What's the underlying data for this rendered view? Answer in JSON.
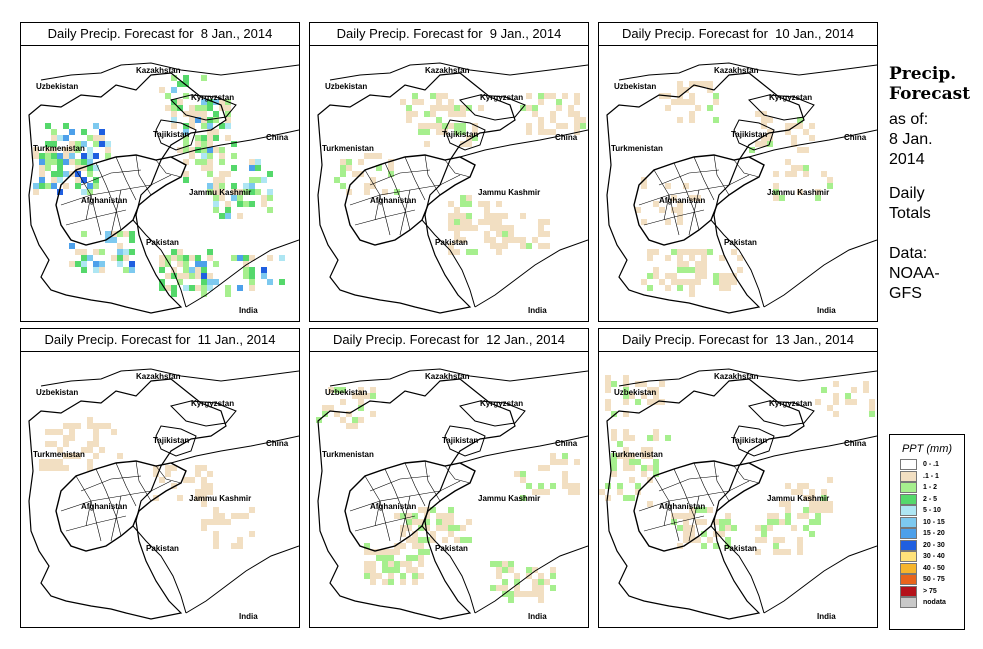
{
  "panels": [
    {
      "title": "Daily Precip. Forecast for  8 Jan., 2014",
      "intensity": 1.0
    },
    {
      "title": "Daily Precip. Forecast for  9 Jan., 2014",
      "intensity": 0.45
    },
    {
      "title": "Daily Precip. Forecast for  10 Jan., 2014",
      "intensity": 0.4
    },
    {
      "title": "Daily Precip. Forecast for  11 Jan., 2014",
      "intensity": 0.12
    },
    {
      "title": "Daily Precip. Forecast for  12 Jan., 2014",
      "intensity": 0.55
    },
    {
      "title": "Daily Precip. Forecast for  13 Jan., 2014",
      "intensity": 0.5
    }
  ],
  "map_labels": {
    "kazakhstan": "Kazakhstan",
    "uzbekistan": "Uzbekistan",
    "kyrgyzstan": "Kyrgyzstan",
    "tajikistan": "Tajikistan",
    "turkmenistan": "Turkmenistan",
    "china": "China",
    "afghanistan": "Afghanistan",
    "jammu_kashmir": "Jammu Kashmir",
    "pakistan": "Pakistan",
    "india": "India"
  },
  "side_text": {
    "heading_1": "Precip.",
    "heading_2": "Forecast",
    "as_of": "as of:",
    "date_1": "8 Jan.",
    "date_2": "2014",
    "daily_1": "Daily",
    "daily_2": "Totals",
    "data_1": "Data:",
    "data_2": "NOAA-",
    "data_3": "GFS"
  },
  "legend": {
    "title": "PPT (mm)",
    "items": [
      {
        "label": "0 - .1",
        "color": "#ffffff"
      },
      {
        "label": ".1 - 1",
        "color": "#f2dfc2"
      },
      {
        "label": "1 - 2",
        "color": "#a6ef8e"
      },
      {
        "label": "2 - 5",
        "color": "#55d86b"
      },
      {
        "label": "5 - 10",
        "color": "#aee6f3"
      },
      {
        "label": "10 - 15",
        "color": "#7dc9ef"
      },
      {
        "label": "15 - 20",
        "color": "#4da0ea"
      },
      {
        "label": "20 - 30",
        "color": "#1f5fe0"
      },
      {
        "label": "30 - 40",
        "color": "#ffe27a"
      },
      {
        "label": "40 - 50",
        "color": "#f6b52c"
      },
      {
        "label": "50 - 75",
        "color": "#e8641b"
      },
      {
        "label": "> 75",
        "color": "#b4121a"
      },
      {
        "label": "nodata",
        "color": "#c8c8c8"
      }
    ]
  }
}
